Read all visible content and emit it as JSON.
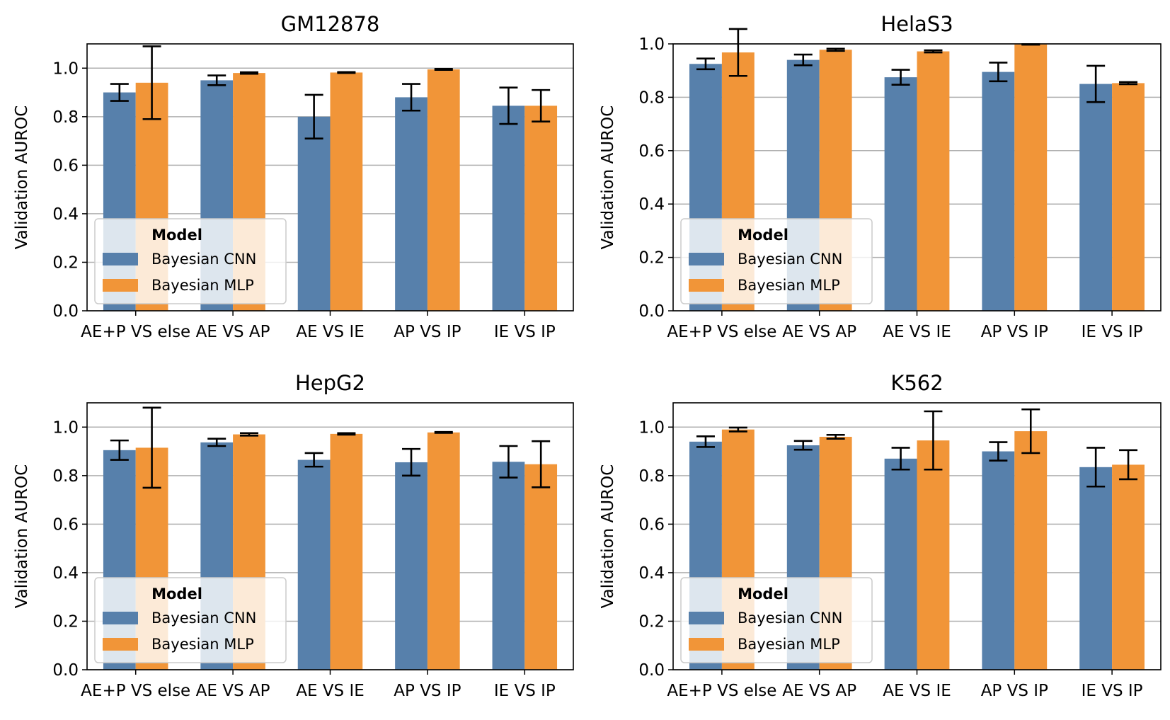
{
  "chart_data": [
    {
      "type": "bar",
      "title": "GM12878",
      "ylabel": "Validation AUROC",
      "xlabel": "",
      "ylim": [
        0,
        1.1
      ],
      "yticks": [
        "0.0",
        "0.2",
        "0.4",
        "0.6",
        "0.8",
        "1.0"
      ],
      "grid": "y",
      "categories": [
        "AE+P VS else",
        "AE VS AP",
        "AE VS IE",
        "AP VS IP",
        "IE VS IP"
      ],
      "series": [
        {
          "name": "Bayesian CNN",
          "values": [
            0.9,
            0.95,
            0.8,
            0.88,
            0.845
          ],
          "err": [
            0.035,
            0.02,
            0.09,
            0.055,
            0.075
          ]
        },
        {
          "name": "Bayesian MLP",
          "values": [
            0.94,
            0.98,
            0.982,
            0.995,
            0.845
          ],
          "err": [
            0.15,
            0.003,
            0.002,
            0.002,
            0.065
          ]
        }
      ],
      "legend": {
        "title": "Model",
        "position": "lower-left"
      }
    },
    {
      "type": "bar",
      "title": "HelaS3",
      "ylabel": "Validation AUROC",
      "xlabel": "",
      "ylim": [
        0,
        1.0
      ],
      "yticks": [
        "0.0",
        "0.2",
        "0.4",
        "0.6",
        "0.8",
        "1.0"
      ],
      "grid": "y",
      "categories": [
        "AE+P VS else",
        "AE VS AP",
        "AE VS IE",
        "AP VS IP",
        "IE VS IP"
      ],
      "series": [
        {
          "name": "Bayesian CNN",
          "values": [
            0.925,
            0.94,
            0.875,
            0.895,
            0.85
          ],
          "err": [
            0.02,
            0.02,
            0.028,
            0.035,
            0.068
          ]
        },
        {
          "name": "Bayesian MLP",
          "values": [
            0.968,
            0.978,
            0.972,
            0.998,
            0.853
          ],
          "err": [
            0.088,
            0.004,
            0.004,
            0.001,
            0.004
          ]
        }
      ],
      "legend": {
        "title": "Model",
        "position": "lower-left"
      }
    },
    {
      "type": "bar",
      "title": "HepG2",
      "ylabel": "Validation AUROC",
      "xlabel": "",
      "ylim": [
        0,
        1.1
      ],
      "yticks": [
        "0.0",
        "0.2",
        "0.4",
        "0.6",
        "0.8",
        "1.0"
      ],
      "grid": "y",
      "categories": [
        "AE+P VS else",
        "AE VS AP",
        "AE VS IE",
        "AP VS IP",
        "IE VS IP"
      ],
      "series": [
        {
          "name": "Bayesian CNN",
          "values": [
            0.905,
            0.937,
            0.865,
            0.855,
            0.857
          ],
          "err": [
            0.04,
            0.015,
            0.028,
            0.055,
            0.065
          ]
        },
        {
          "name": "Bayesian MLP",
          "values": [
            0.915,
            0.97,
            0.972,
            0.978,
            0.847
          ],
          "err": [
            0.165,
            0.005,
            0.003,
            0.002,
            0.095
          ]
        }
      ],
      "legend": {
        "title": "Model",
        "position": "lower-left"
      }
    },
    {
      "type": "bar",
      "title": "K562",
      "ylabel": "Validation AUROC",
      "xlabel": "",
      "ylim": [
        0,
        1.1
      ],
      "yticks": [
        "0.0",
        "0.2",
        "0.4",
        "0.6",
        "0.8",
        "1.0"
      ],
      "grid": "y",
      "categories": [
        "AE+P VS else",
        "AE VS AP",
        "AE VS IE",
        "AP VS IP",
        "IE VS IP"
      ],
      "series": [
        {
          "name": "Bayesian CNN",
          "values": [
            0.94,
            0.925,
            0.87,
            0.9,
            0.835
          ],
          "err": [
            0.022,
            0.018,
            0.045,
            0.038,
            0.08
          ]
        },
        {
          "name": "Bayesian MLP",
          "values": [
            0.99,
            0.96,
            0.945,
            0.983,
            0.845
          ],
          "err": [
            0.008,
            0.008,
            0.12,
            0.09,
            0.06
          ]
        }
      ],
      "legend": {
        "title": "Model",
        "position": "lower-left"
      }
    }
  ],
  "colors": {
    "Bayesian CNN": "#5780ab",
    "Bayesian MLP": "#f19538",
    "grid": "#b0b0b0",
    "axis": "#000000"
  }
}
